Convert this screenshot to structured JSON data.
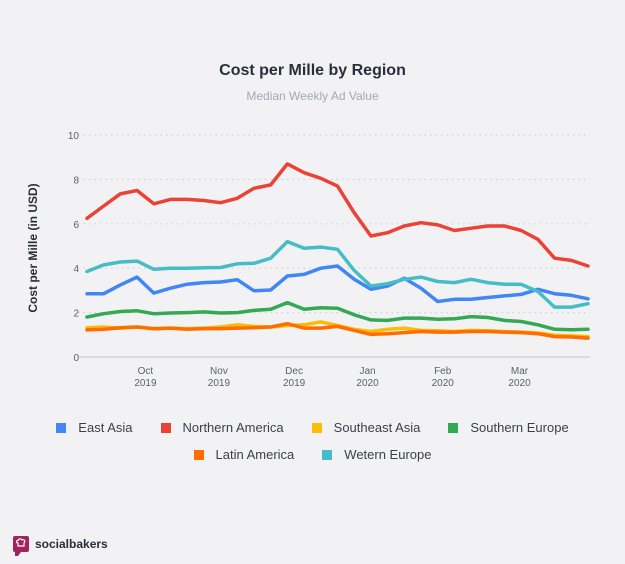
{
  "chart_data": {
    "type": "line",
    "title": "Cost per Mille by Region",
    "subtitle": "Median Weekly Ad Value",
    "xlabel": "",
    "ylabel": "Cost per Mille (in USD)",
    "ylim": [
      0,
      10
    ],
    "yticks": [
      "0",
      "2",
      "4",
      "6",
      "8",
      "10"
    ],
    "grid": true,
    "n_points": 31,
    "xticks": [
      {
        "index": 3.5,
        "line1": "Oct",
        "line2": "2019"
      },
      {
        "index": 7.9,
        "line1": "Nov",
        "line2": "2019"
      },
      {
        "index": 12.4,
        "line1": "Dec",
        "line2": "2019"
      },
      {
        "index": 16.8,
        "line1": "Jan",
        "line2": "2020"
      },
      {
        "index": 21.3,
        "line1": "Feb",
        "line2": "2020"
      },
      {
        "index": 25.9,
        "line1": "Mar",
        "line2": "2020"
      }
    ],
    "legend_position": "bottom",
    "series": [
      {
        "name": "Southeast Asia",
        "color": "#fbbc05",
        "values": [
          1.32,
          1.35,
          1.3,
          1.35,
          1.28,
          1.3,
          1.28,
          1.3,
          1.35,
          1.45,
          1.38,
          1.35,
          1.42,
          1.45,
          1.58,
          1.42,
          1.25,
          1.15,
          1.25,
          1.3,
          1.2,
          1.18,
          1.15,
          1.2,
          1.18,
          1.15,
          1.12,
          1.08,
          0.98,
          0.95,
          0.92
        ]
      },
      {
        "name": "Latin America",
        "color": "#ff6d00",
        "values": [
          1.22,
          1.25,
          1.32,
          1.35,
          1.27,
          1.3,
          1.25,
          1.28,
          1.28,
          1.3,
          1.32,
          1.35,
          1.5,
          1.3,
          1.3,
          1.38,
          1.2,
          1.02,
          1.05,
          1.1,
          1.15,
          1.12,
          1.12,
          1.15,
          1.15,
          1.12,
          1.1,
          1.05,
          0.92,
          0.9,
          0.85
        ]
      },
      {
        "name": "Southern Europe",
        "color": "#34a853",
        "values": [
          1.8,
          1.95,
          2.05,
          2.08,
          1.95,
          1.98,
          2.0,
          2.03,
          1.98,
          2.0,
          2.1,
          2.15,
          2.45,
          2.15,
          2.22,
          2.2,
          1.9,
          1.67,
          1.65,
          1.75,
          1.75,
          1.7,
          1.72,
          1.82,
          1.78,
          1.65,
          1.6,
          1.45,
          1.25,
          1.23,
          1.25
        ]
      },
      {
        "name": "East Asia",
        "color": "#4285f4",
        "values": [
          2.85,
          2.85,
          3.25,
          3.6,
          2.88,
          3.1,
          3.28,
          3.35,
          3.38,
          3.48,
          2.98,
          3.02,
          3.65,
          3.72,
          4.0,
          4.1,
          3.5,
          3.05,
          3.2,
          3.55,
          3.1,
          2.5,
          2.6,
          2.6,
          2.68,
          2.75,
          2.82,
          3.05,
          2.85,
          2.78,
          2.62
        ]
      },
      {
        "name": "Wetern Europe",
        "color": "#46bdc6",
        "values": [
          3.85,
          4.15,
          4.28,
          4.32,
          3.95,
          4.0,
          4.0,
          4.02,
          4.03,
          4.2,
          4.22,
          4.45,
          5.2,
          4.9,
          4.95,
          4.85,
          3.9,
          3.2,
          3.3,
          3.5,
          3.6,
          3.4,
          3.35,
          3.5,
          3.35,
          3.28,
          3.27,
          2.95,
          2.25,
          2.25,
          2.4
        ]
      },
      {
        "name": "Northern America",
        "color": "#ea4335",
        "values": [
          6.25,
          6.8,
          7.35,
          7.5,
          6.9,
          7.1,
          7.1,
          7.05,
          6.95,
          7.15,
          7.6,
          7.75,
          8.7,
          8.3,
          8.05,
          7.7,
          6.5,
          5.45,
          5.6,
          5.9,
          6.05,
          5.95,
          5.7,
          5.8,
          5.9,
          5.9,
          5.7,
          5.3,
          4.45,
          4.35,
          4.1
        ]
      }
    ]
  },
  "legend": {
    "row1": [
      {
        "name": "East Asia",
        "color": "#4285f4"
      },
      {
        "name": "Northern America",
        "color": "#ea4335"
      },
      {
        "name": "Southeast Asia",
        "color": "#fbbc05"
      },
      {
        "name": "Southern Europe",
        "color": "#34a853"
      }
    ],
    "row2": [
      {
        "name": "Latin America",
        "color": "#ff6d00"
      },
      {
        "name": "Wetern Europe",
        "color": "#46bdc6"
      }
    ]
  },
  "brand": {
    "name": "socialbakers",
    "color": "#a1245e"
  }
}
